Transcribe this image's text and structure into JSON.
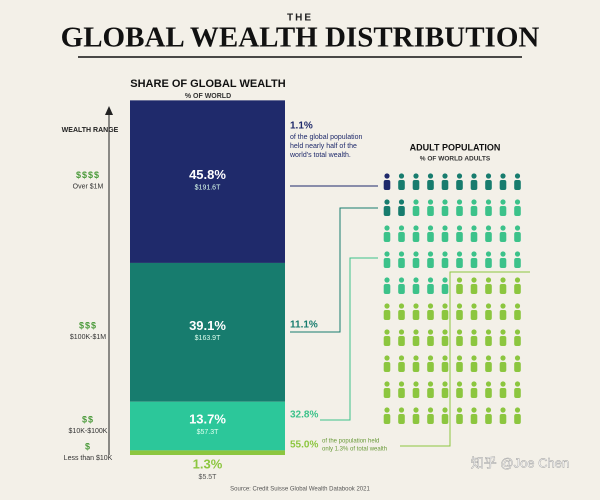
{
  "header": {
    "pre": "THE",
    "title": "GLOBAL WEALTH DISTRIBUTION"
  },
  "chart_data": {
    "type": "stacked-bar",
    "title": "SHARE OF GLOBAL WEALTH",
    "subtitle": "% OF WORLD",
    "y_label": "WEALTH RANGE",
    "categories": [
      "Over $1M",
      "$100K-$1M",
      "$10K-$100K",
      "Less than $10K"
    ],
    "category_icons": [
      "$$$$",
      "$$$",
      "$$",
      "$"
    ],
    "colors": [
      "#1f2a6b",
      "#177c6e",
      "#2cc79a",
      "#8cc63f"
    ],
    "ylim": [
      0,
      100
    ],
    "values": [
      45.8,
      39.1,
      13.7,
      1.3
    ],
    "value_labels": [
      "45.8%",
      "39.1%",
      "13.7%",
      "1.3%"
    ],
    "amounts": [
      "$191.6T",
      "$163.9T",
      "$57.3T",
      "$5.5T"
    ],
    "population": {
      "title": "ADULT POPULATION",
      "subtitle": "% OF WORLD ADULTS",
      "values": [
        1.1,
        11.1,
        32.8,
        55.0
      ],
      "value_labels": [
        "1.1%",
        "11.1%",
        "32.8%",
        "55.0%"
      ],
      "colors": [
        "#1f2a6b",
        "#177c6e",
        "#3cc28a",
        "#8cc63f"
      ]
    },
    "annotations": [
      [
        "of the global population",
        "held nearly half of the",
        "world's total wealth."
      ],
      [
        "of the population held",
        "only 1.3% of total wealth"
      ]
    ]
  },
  "source": "Source: Credit Suisse Global Wealth Databook 2021",
  "watermark": "知乎 @Joe Chen"
}
